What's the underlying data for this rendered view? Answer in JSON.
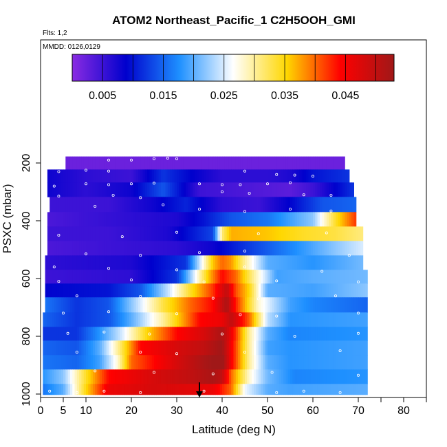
{
  "chart_data": {
    "type": "heatmap",
    "title": "ATOM2 Northeast_Pacific_1 C2H5OOH_GMI",
    "annotations": [
      "Flts: 1,2",
      "MMDD: 0126,0129"
    ],
    "xlabel": "Latitude (deg N)",
    "ylabel": "PSXC (mbar)",
    "xlim": [
      0,
      85
    ],
    "ylim": [
      1000,
      0
    ],
    "x_ticks": [
      0,
      5,
      10,
      20,
      30,
      40,
      50,
      60,
      70,
      80
    ],
    "y_ticks": [
      200,
      400,
      600,
      800,
      1000
    ],
    "colorbar": {
      "range": [
        0,
        0.053
      ],
      "tick_values": [
        0.005,
        0.015,
        0.025,
        0.035,
        0.045
      ],
      "tick_labels": [
        "0.005",
        "0.015",
        "0.025",
        "0.035",
        "0.045"
      ],
      "stops": [
        "#8a2be2",
        "#0000cd",
        "#1e90ff",
        "#ffffff",
        "#ffd700",
        "#ff0000",
        "#a01818"
      ]
    },
    "rows": [
      {
        "p": 200,
        "lat_start": 5.5,
        "lat_end": 67,
        "lat": [
          5.5,
          67
        ],
        "val": [
          0.002,
          0.002
        ]
      },
      {
        "p": 245,
        "lat_start": 1.5,
        "lat_end": 68,
        "lat": [
          1.5,
          10,
          20,
          27,
          33,
          40,
          50,
          55,
          60,
          68
        ],
        "val": [
          0.008,
          0.006,
          0.005,
          0.012,
          0.009,
          0.006,
          0.006,
          0.007,
          0.01,
          0.012
        ]
      },
      {
        "p": 290,
        "lat_start": 1.5,
        "lat_end": 69,
        "lat": [
          1.5,
          10,
          20,
          27,
          35,
          45,
          55,
          60,
          69
        ],
        "val": [
          0.008,
          0.006,
          0.008,
          0.014,
          0.005,
          0.004,
          0.003,
          0.005,
          0.012
        ]
      },
      {
        "p": 345,
        "lat_start": 2,
        "lat_end": 69.5,
        "lat": [
          2,
          15,
          25,
          32,
          40,
          48,
          55,
          62,
          69.5
        ],
        "val": [
          0.005,
          0.005,
          0.008,
          0.011,
          0.006,
          0.005,
          0.009,
          0.014,
          0.015
        ]
      },
      {
        "p": 395,
        "lat_start": 1.5,
        "lat_end": 69.5,
        "lat": [
          1.5,
          10,
          20,
          30,
          36,
          42,
          50,
          60,
          65,
          69.5
        ],
        "val": [
          0.004,
          0.005,
          0.006,
          0.007,
          0.01,
          0.014,
          0.016,
          0.022,
          0.034,
          0.042
        ]
      },
      {
        "p": 445,
        "lat_start": 1.5,
        "lat_end": 71,
        "lat": [
          1.5,
          15,
          28,
          38,
          40,
          42,
          50,
          58,
          65,
          71
        ],
        "val": [
          0.005,
          0.005,
          0.007,
          0.013,
          0.031,
          0.037,
          0.036,
          0.034,
          0.033,
          0.031
        ]
      },
      {
        "p": 495,
        "lat_start": 1.5,
        "lat_end": 71,
        "lat": [
          1.5,
          15,
          30,
          38,
          45,
          55,
          65,
          71
        ],
        "val": [
          0.004,
          0.005,
          0.006,
          0.008,
          0.012,
          0.017,
          0.022,
          0.025
        ]
      },
      {
        "p": 545,
        "lat_start": 1,
        "lat_end": 71,
        "lat": [
          1,
          20,
          32,
          38,
          40,
          42,
          45,
          50,
          60,
          71
        ],
        "val": [
          0.006,
          0.007,
          0.012,
          0.036,
          0.04,
          0.038,
          0.03,
          0.02,
          0.018,
          0.021
        ]
      },
      {
        "p": 595,
        "lat_start": 1,
        "lat_end": 72,
        "lat": [
          1,
          20,
          30,
          37,
          40,
          43,
          47,
          52,
          60,
          72
        ],
        "val": [
          0.005,
          0.006,
          0.012,
          0.036,
          0.044,
          0.04,
          0.03,
          0.019,
          0.02,
          0.021
        ]
      },
      {
        "p": 640,
        "lat_start": 1,
        "lat_end": 72,
        "lat": [
          1,
          15,
          22,
          28,
          33,
          38,
          41,
          43,
          46,
          50,
          60,
          72
        ],
        "val": [
          0.009,
          0.01,
          0.014,
          0.024,
          0.034,
          0.042,
          0.05,
          0.041,
          0.035,
          0.02,
          0.019,
          0.022
        ]
      },
      {
        "p": 690,
        "lat_start": 1,
        "lat_end": 72,
        "lat": [
          1,
          8,
          15,
          22,
          27,
          33,
          38,
          41,
          43,
          48,
          55,
          60,
          72
        ],
        "val": [
          0.016,
          0.012,
          0.014,
          0.025,
          0.033,
          0.04,
          0.044,
          0.052,
          0.043,
          0.028,
          0.019,
          0.017,
          0.015
        ]
      },
      {
        "p": 745,
        "lat_start": 0.5,
        "lat_end": 72,
        "lat": [
          0.5,
          8,
          15,
          20,
          27,
          35,
          40,
          42,
          46,
          50,
          55,
          72
        ],
        "val": [
          0.015,
          0.012,
          0.014,
          0.02,
          0.03,
          0.044,
          0.046,
          0.05,
          0.04,
          0.024,
          0.018,
          0.019
        ]
      },
      {
        "p": 790,
        "lat_start": 0.5,
        "lat_end": 72,
        "lat": [
          0.5,
          8,
          13,
          18,
          24,
          30,
          36,
          40,
          42,
          46,
          50,
          55,
          72
        ],
        "val": [
          0.012,
          0.012,
          0.018,
          0.025,
          0.036,
          0.044,
          0.048,
          0.052,
          0.046,
          0.03,
          0.02,
          0.017,
          0.018
        ]
      },
      {
        "p": 840,
        "lat_start": 0.5,
        "lat_end": 72,
        "lat": [
          0.5,
          8,
          13,
          17,
          22,
          30,
          36,
          40,
          42,
          46,
          50,
          55,
          72
        ],
        "val": [
          0.015,
          0.014,
          0.02,
          0.03,
          0.044,
          0.048,
          0.05,
          0.053,
          0.045,
          0.03,
          0.019,
          0.018,
          0.019
        ]
      },
      {
        "p": 890,
        "lat_start": 0.5,
        "lat_end": 72,
        "lat": [
          0.5,
          8,
          13,
          17,
          20,
          30,
          36,
          40,
          42,
          46,
          50,
          55,
          72
        ],
        "val": [
          0.016,
          0.015,
          0.019,
          0.028,
          0.04,
          0.048,
          0.052,
          0.054,
          0.045,
          0.03,
          0.02,
          0.018,
          0.019
        ]
      },
      {
        "p": 940,
        "lat_start": 0.5,
        "lat_end": 72,
        "lat": [
          0.5,
          5,
          10,
          15,
          25,
          33,
          38,
          40,
          42,
          46,
          50,
          56,
          72
        ],
        "val": [
          0.018,
          0.022,
          0.034,
          0.044,
          0.048,
          0.05,
          0.052,
          0.05,
          0.04,
          0.028,
          0.021,
          0.017,
          0.018
        ]
      },
      {
        "p": 990,
        "lat_start": 0.5,
        "lat_end": 72,
        "lat": [
          0.5,
          5,
          10,
          15,
          25,
          33,
          38,
          42,
          45,
          50,
          55,
          72
        ],
        "val": [
          0.016,
          0.02,
          0.035,
          0.046,
          0.048,
          0.047,
          0.046,
          0.04,
          0.026,
          0.02,
          0.019,
          0.02
        ]
      }
    ],
    "observation_points": [
      [
        15,
        190
      ],
      [
        20,
        190
      ],
      [
        25,
        185
      ],
      [
        28,
        183
      ],
      [
        30,
        185
      ],
      [
        4,
        230
      ],
      [
        10,
        225
      ],
      [
        15,
        228
      ],
      [
        45,
        228
      ],
      [
        52,
        240
      ],
      [
        56,
        242
      ],
      [
        60,
        246
      ],
      [
        3,
        280
      ],
      [
        10,
        272
      ],
      [
        15,
        275
      ],
      [
        20,
        272
      ],
      [
        25,
        270
      ],
      [
        35,
        272
      ],
      [
        40,
        275
      ],
      [
        44,
        275
      ],
      [
        50,
        272
      ],
      [
        55,
        268
      ],
      [
        4,
        315
      ],
      [
        16,
        312
      ],
      [
        22,
        320
      ],
      [
        40,
        300
      ],
      [
        46,
        305
      ],
      [
        58,
        310
      ],
      [
        64,
        312
      ],
      [
        12,
        350
      ],
      [
        27,
        345
      ],
      [
        35,
        360
      ],
      [
        45,
        368
      ],
      [
        55,
        360
      ],
      [
        64,
        366
      ],
      [
        70,
        360
      ],
      [
        4,
        450
      ],
      [
        18,
        455
      ],
      [
        30,
        440
      ],
      [
        48,
        445
      ],
      [
        63,
        442
      ],
      [
        10,
        515
      ],
      [
        22,
        520
      ],
      [
        35,
        510
      ],
      [
        45,
        505
      ],
      [
        68,
        520
      ],
      [
        3,
        560
      ],
      [
        15,
        565
      ],
      [
        30,
        570
      ],
      [
        45,
        560
      ],
      [
        62,
        575
      ],
      [
        4,
        610
      ],
      [
        20,
        605
      ],
      [
        36,
        612
      ],
      [
        52,
        608
      ],
      [
        70,
        612
      ],
      [
        8,
        660
      ],
      [
        22,
        662
      ],
      [
        38,
        668
      ],
      [
        48,
        670
      ],
      [
        65,
        660
      ],
      [
        5,
        720
      ],
      [
        15,
        715
      ],
      [
        30,
        722
      ],
      [
        44,
        725
      ],
      [
        52,
        730
      ],
      [
        70,
        720
      ],
      [
        6,
        790
      ],
      [
        14,
        785
      ],
      [
        24,
        792
      ],
      [
        40,
        792
      ],
      [
        56,
        800
      ],
      [
        70,
        790
      ],
      [
        8,
        855
      ],
      [
        22,
        855
      ],
      [
        30,
        860
      ],
      [
        45,
        855
      ],
      [
        66,
        850
      ],
      [
        12,
        920
      ],
      [
        25,
        925
      ],
      [
        38,
        930
      ],
      [
        51,
        925
      ],
      [
        70,
        935
      ],
      [
        2,
        990
      ],
      [
        8,
        995
      ],
      [
        14,
        990
      ],
      [
        22,
        995
      ],
      [
        36,
        990
      ],
      [
        52,
        995
      ],
      [
        58,
        990
      ],
      [
        66,
        995
      ]
    ],
    "marker": {
      "lat": 35,
      "type": "arrow"
    }
  }
}
